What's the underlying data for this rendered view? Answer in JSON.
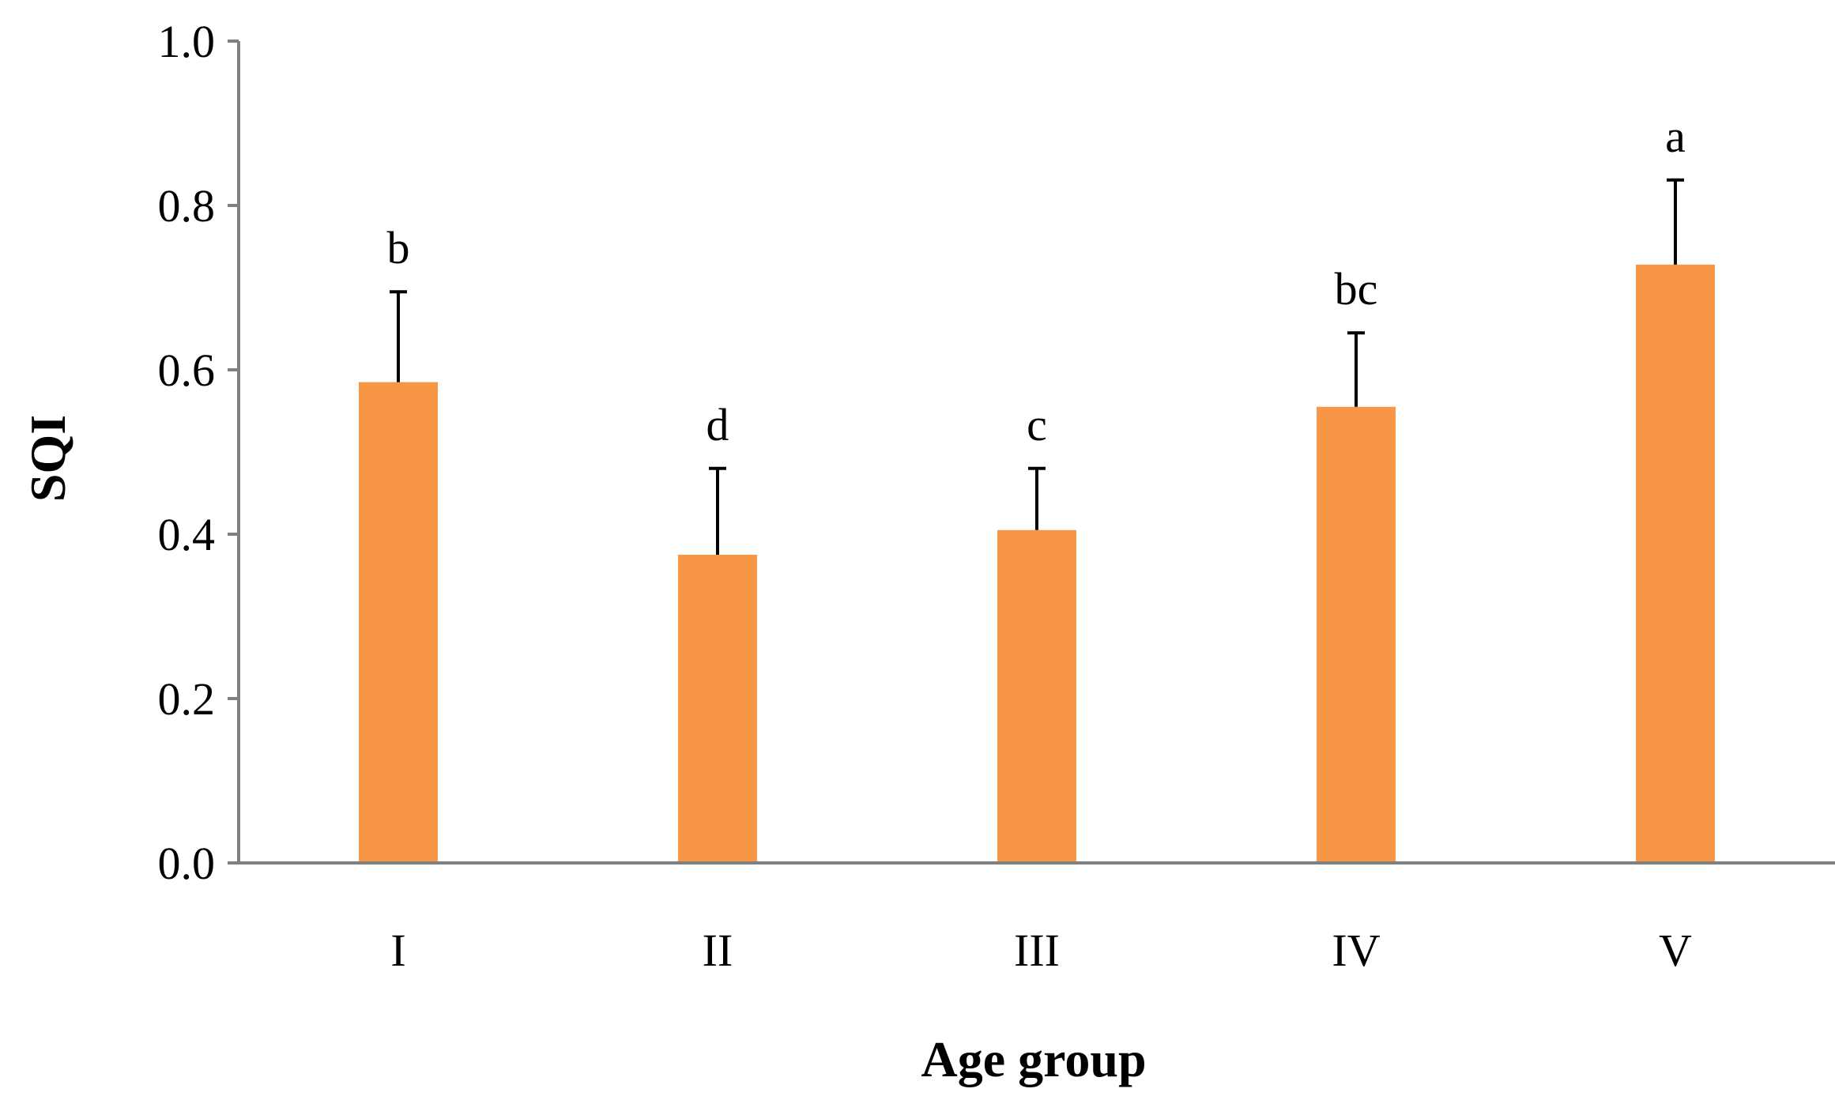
{
  "chart_data": {
    "type": "bar",
    "title": "",
    "xlabel": "Age group",
    "ylabel": "SQI",
    "categories": [
      "I",
      "II",
      "III",
      "IV",
      "V"
    ],
    "values": [
      0.585,
      0.375,
      0.405,
      0.555,
      0.728
    ],
    "errors": [
      0.11,
      0.105,
      0.075,
      0.09,
      0.103
    ],
    "significance_letters": [
      "b",
      "d",
      "c",
      "bc",
      "a"
    ],
    "ylim": [
      0,
      1.0
    ],
    "yticks": [
      "0.0",
      "0.2",
      "0.4",
      "0.6",
      "0.8",
      "1.0"
    ],
    "ytick_values": [
      0,
      0.2,
      0.4,
      0.6,
      0.8,
      1.0
    ],
    "grid": false,
    "legend": "none",
    "bar_color": "#F79646",
    "axis_color": "#808080",
    "errorbar_color": "#000000"
  }
}
